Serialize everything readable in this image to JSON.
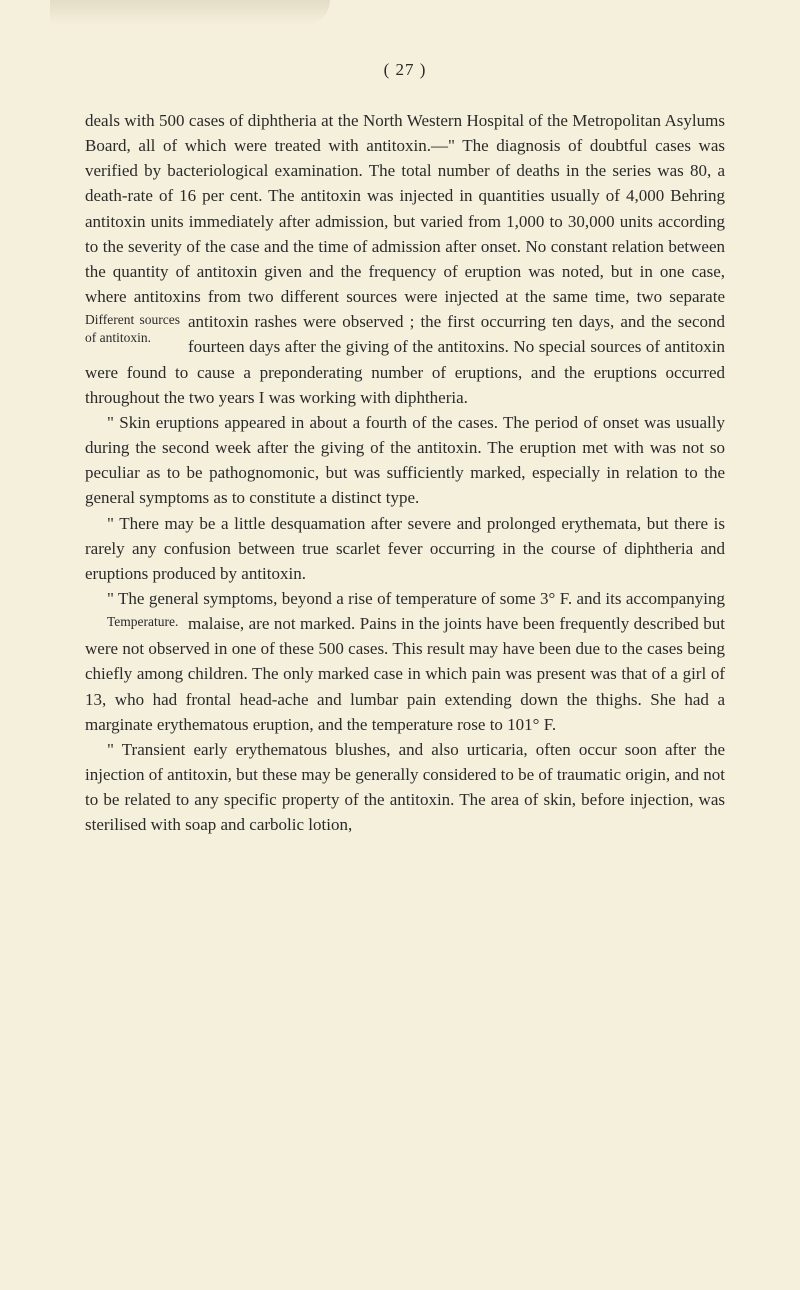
{
  "page_number": "( 27 )",
  "colors": {
    "background": "#f5f0dc",
    "text": "#2a2a2a"
  },
  "typography": {
    "body_fontsize": 17,
    "marginnote_fontsize": 13.5,
    "line_height": 1.48,
    "font_family": "Georgia, Times New Roman, serif"
  },
  "paragraphs": {
    "p1_part1": "deals with 500 cases of diphtheria at the North Western Hospital of the Metropolitan Asylums Board, all of which were treated with antitoxin.—\" The diagnosis of doubtful cases was verified by bacteriological examination. The total number of deaths in the series was 80, a death-rate of 16 per cent. The antitoxin was injected in quantities usually of 4,000 Behring antitoxin units immediately after admission, but varied from 1,000 to 30,000 units according to the severity of the case and the time of admission after onset. No constant relation between the quantity of antitoxin given and the frequency of eruption was noted, but in one case, where antitoxins from two different sources were injected at the same time, two separate antitoxin rashes were observed ; the first occurring ten days, and the second fourteen days after the giving of the antitoxins. No special sources of antitoxin were found to cause a preponderating number of eruptions, and the eruptions occurred throughout the two years I was working with diphtheria.",
    "p2": "\" Skin eruptions appeared in about a fourth of the cases. The period of onset was usually during the second week after the giving of the antitoxin. The eruption met with was not so peculiar as to be pathognomonic, but was sufficiently marked, especially in relation to the general symptoms as to constitute a distinct type.",
    "p3": "\" There may be a little desquamation after severe and prolonged erythemata, but there is rarely any confusion between true scarlet fever occurring in the course of diphtheria and eruptions produced by antitoxin.",
    "p4": "\" The general symptoms, beyond a rise of temperature of some 3° F. and its accompanying malaise, are not marked. Pains in the joints have been frequently described but were not observed in one of these 500 cases. This result may have been due to the cases being chiefly among children. The only marked case in which pain was present was that of a girl of 13, who had frontal head-ache and lumbar pain extending down the thighs. She had a marginate erythematous eruption, and the temperature rose to 101° F.",
    "p5": "\" Transient early erythematous blushes, and also urticaria, often occur soon after the injection of antitoxin, but these may be generally considered to be of traumatic origin, and not to be related to any specific property of the antitoxin. The area of skin, before injection, was sterilised with soap and carbolic lotion,"
  },
  "margin_notes": {
    "note1": "Different sources of antitoxin.",
    "note2": "Temperature."
  }
}
